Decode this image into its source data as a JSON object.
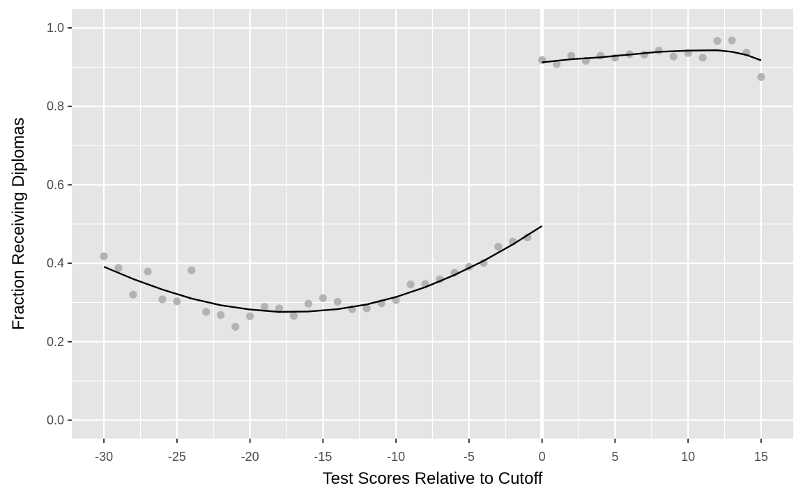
{
  "chart_data": {
    "type": "scatter",
    "title": "",
    "xlabel": "Test Scores Relative to Cutoff",
    "ylabel": "Fraction Receiving Diplomas",
    "xlim": [
      -32.2,
      17.2
    ],
    "ylim": [
      -0.047,
      1.048
    ],
    "x_ticks": [
      -30,
      -25,
      -20,
      -15,
      -10,
      -5,
      0,
      5,
      10,
      15
    ],
    "x_tick_labels": [
      "-30",
      "-25",
      "-20",
      "-15",
      "-10",
      "-5",
      "0",
      "5",
      "10",
      "15"
    ],
    "y_ticks": [
      0.0,
      0.2,
      0.4,
      0.6,
      0.8,
      1.0
    ],
    "y_tick_labels": [
      "0.0",
      "0.2",
      "0.4",
      "0.6",
      "0.8",
      "1.0"
    ],
    "grid": true,
    "cutoff_line": 0,
    "colors": {
      "panel": "#e5e5e5",
      "grid": "#ffffff",
      "points": "#b3b3b3",
      "fit": "#000000"
    },
    "points": {
      "x": [
        -30,
        -29,
        -28,
        -27,
        -26,
        -25,
        -24,
        -23,
        -22,
        -21,
        -20,
        -19,
        -18,
        -17,
        -16,
        -15,
        -14,
        -13,
        -12,
        -11,
        -10,
        -9,
        -8,
        -7,
        -6,
        -5,
        -4,
        -3,
        -2,
        -1,
        0,
        1,
        2,
        3,
        4,
        5,
        6,
        7,
        8,
        9,
        10,
        11,
        12,
        13,
        14,
        15
      ],
      "y": [
        0.418,
        0.388,
        0.32,
        0.379,
        0.308,
        0.303,
        0.382,
        0.276,
        0.268,
        0.238,
        0.265,
        0.289,
        0.285,
        0.266,
        0.297,
        0.311,
        0.302,
        0.283,
        0.285,
        0.298,
        0.306,
        0.346,
        0.347,
        0.359,
        0.376,
        0.391,
        0.401,
        0.442,
        0.455,
        0.466,
        0.918,
        0.908,
        0.929,
        0.916,
        0.929,
        0.924,
        0.933,
        0.932,
        0.942,
        0.927,
        0.936,
        0.924,
        0.967,
        0.968,
        0.937,
        0.875
      ]
    },
    "series": [
      {
        "x": [
          -30,
          -28,
          -26,
          -24,
          -22,
          -20,
          -18,
          -16,
          -14,
          -12,
          -10,
          -8,
          -6,
          -4,
          -2,
          0
        ],
        "y": [
          0.391,
          0.36,
          0.333,
          0.31,
          0.293,
          0.282,
          0.276,
          0.277,
          0.283,
          0.295,
          0.314,
          0.339,
          0.37,
          0.406,
          0.448,
          0.495
        ]
      },
      {
        "x": [
          0,
          2,
          4,
          6,
          8,
          10,
          12,
          13,
          14,
          15
        ],
        "y": [
          0.912,
          0.92,
          0.925,
          0.932,
          0.939,
          0.942,
          0.943,
          0.939,
          0.931,
          0.917
        ]
      }
    ]
  }
}
